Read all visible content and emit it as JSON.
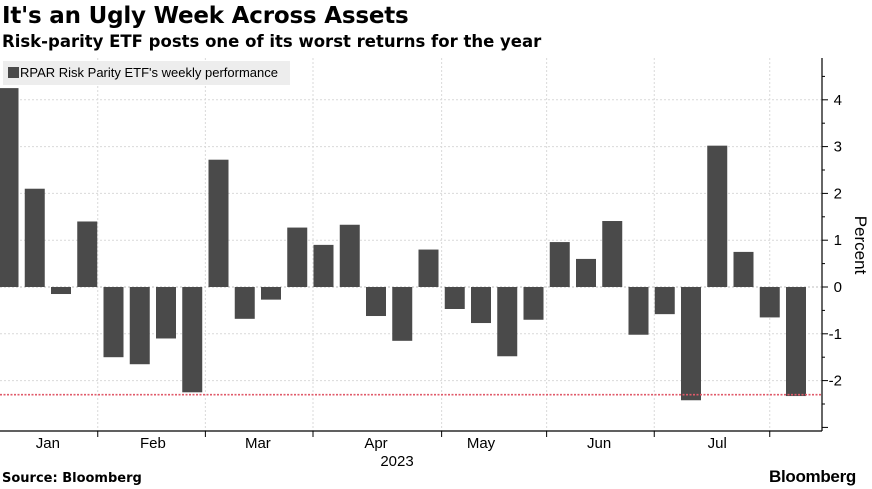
{
  "header": {
    "title": "It's an Ugly Week Across Assets",
    "subtitle": "Risk-parity ETF posts one of its worst returns for the year"
  },
  "footer": {
    "source": "Source: Bloomberg",
    "brand": "Bloomberg"
  },
  "colors": {
    "bar": "#4a4a4a",
    "grid": "#d9d9d9",
    "reference_line": "#e05a6a",
    "legend_bg": "#ededed"
  },
  "chart_data": {
    "type": "bar",
    "title": "It's an Ugly Week Across Assets",
    "subtitle": "Risk-parity ETF posts one of its worst returns for the year",
    "legend": [
      "RPAR Risk Parity ETF's weekly performance"
    ],
    "legend_position": "top-left",
    "xlabel": "2023",
    "ylabel": "Percent",
    "ylim": [
      -3,
      5
    ],
    "y_ticks": [
      4,
      3,
      2,
      1,
      0,
      -1,
      -2
    ],
    "y_tick_labels": [
      "4",
      "3",
      "2",
      "1",
      "0",
      "-1",
      "-2"
    ],
    "x_tick_labels": [
      "Jan",
      "Feb",
      "Mar",
      "Apr",
      "May",
      "Jun",
      "Jul"
    ],
    "x_tick_week_index": [
      1.5,
      5.5,
      9.5,
      14.0,
      18.0,
      22.5,
      27.0
    ],
    "month_boundary_week_index": [
      3.4,
      7.5,
      11.6,
      16.5,
      20.5,
      24.6,
      29.0
    ],
    "grid": true,
    "reference_line": {
      "value": -2.3,
      "style": "dotted"
    },
    "series": [
      {
        "name": "RPAR Risk Parity ETF's weekly performance",
        "values": [
          4.25,
          2.1,
          -0.15,
          1.4,
          -1.5,
          -1.65,
          -1.1,
          -2.25,
          2.72,
          -0.68,
          -0.27,
          1.27,
          0.9,
          1.33,
          -0.62,
          -1.15,
          0.8,
          -0.47,
          -0.77,
          -1.48,
          -0.7,
          0.96,
          0.6,
          1.41,
          -1.02,
          -0.58,
          -2.42,
          3.02,
          0.75,
          -0.65,
          -2.33
        ]
      }
    ]
  }
}
